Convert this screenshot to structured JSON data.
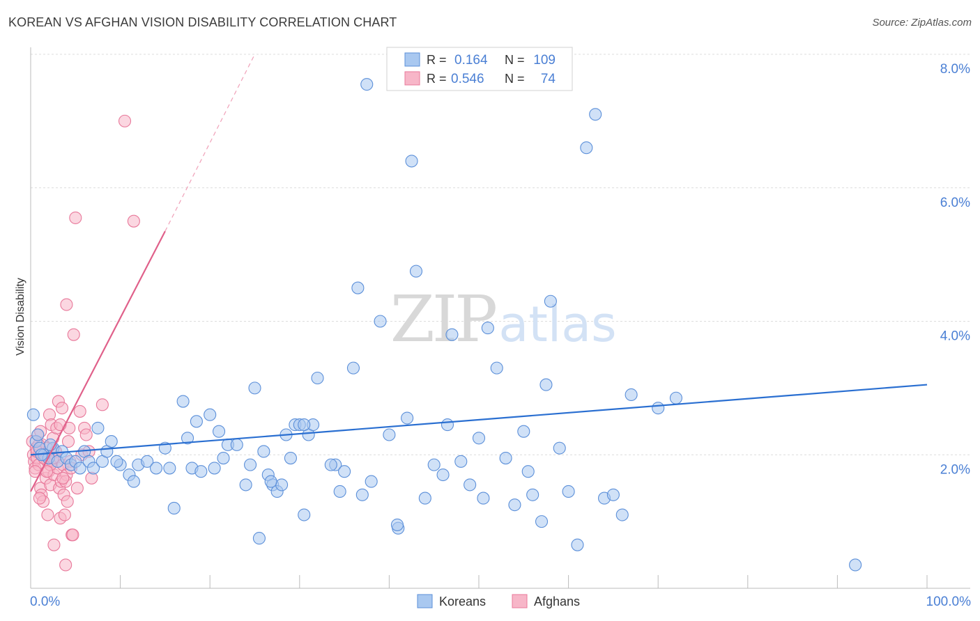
{
  "chart_data": {
    "type": "scatter",
    "title": "KOREAN VS AFGHAN VISION DISABILITY CORRELATION CHART",
    "source": "Source: ZipAtlas.com",
    "ylabel": "Vision Disability",
    "xlabel": "",
    "x_tick_labels": [
      "0.0%",
      "100.0%"
    ],
    "y_ticks": [
      {
        "value": 2.0,
        "label": "2.0%"
      },
      {
        "value": 4.0,
        "label": "4.0%"
      },
      {
        "value": 6.0,
        "label": "6.0%"
      },
      {
        "value": 8.0,
        "label": "8.0%"
      }
    ],
    "xlim": [
      0,
      100
    ],
    "ylim": [
      0,
      8.0
    ],
    "watermark": {
      "part1": "ZIP",
      "part2": "atlas"
    },
    "colors": {
      "korean_fill": "#a9c8f0",
      "korean_stroke": "#5b8fd9",
      "korean_line": "#2a6fd1",
      "afghan_fill": "#f7b6c8",
      "afghan_stroke": "#e8789a",
      "afghan_line": "#e0608a",
      "label_blue": "#4a7fd4"
    },
    "legend_stats": [
      {
        "series": "Koreans",
        "r_label": "R =",
        "r_value": "0.164",
        "n_label": "N =",
        "n_value": "109"
      },
      {
        "series": "Afghans",
        "r_label": "R =",
        "r_value": "0.546",
        "n_label": "N =",
        "n_value": "74"
      }
    ],
    "legend": [
      "Koreans",
      "Afghans"
    ],
    "series": [
      {
        "name": "Koreans",
        "trend": {
          "x0": 0,
          "y0": 2.0,
          "x1": 100,
          "y1": 3.05
        },
        "points": [
          [
            0.3,
            2.6
          ],
          [
            0.6,
            2.2
          ],
          [
            1.0,
            2.1
          ],
          [
            1.5,
            2.0
          ],
          [
            2.0,
            1.95
          ],
          [
            2.5,
            2.1
          ],
          [
            3.0,
            1.9
          ],
          [
            3.5,
            2.05
          ],
          [
            4.0,
            1.95
          ],
          [
            4.5,
            1.85
          ],
          [
            5.0,
            1.9
          ],
          [
            5.5,
            1.8
          ],
          [
            6.0,
            2.05
          ],
          [
            6.5,
            1.9
          ],
          [
            7.0,
            1.8
          ],
          [
            7.5,
            2.4
          ],
          [
            8.0,
            1.9
          ],
          [
            8.5,
            2.05
          ],
          [
            9.0,
            2.2
          ],
          [
            10.0,
            1.85
          ],
          [
            11.0,
            1.7
          ],
          [
            11.5,
            1.6
          ],
          [
            12.0,
            1.85
          ],
          [
            13.0,
            1.9
          ],
          [
            14.0,
            1.8
          ],
          [
            15.0,
            2.1
          ],
          [
            16.0,
            1.2
          ],
          [
            17.0,
            2.8
          ],
          [
            17.5,
            2.25
          ],
          [
            18.0,
            1.8
          ],
          [
            18.5,
            2.5
          ],
          [
            19.0,
            1.75
          ],
          [
            20.0,
            2.6
          ],
          [
            20.5,
            1.8
          ],
          [
            21.0,
            2.35
          ],
          [
            21.5,
            1.95
          ],
          [
            22.0,
            2.15
          ],
          [
            23.0,
            2.15
          ],
          [
            24.0,
            1.55
          ],
          [
            24.5,
            1.85
          ],
          [
            25.0,
            3.0
          ],
          [
            25.5,
            0.75
          ],
          [
            26.0,
            2.05
          ],
          [
            26.5,
            1.7
          ],
          [
            27.0,
            1.55
          ],
          [
            27.5,
            1.45
          ],
          [
            28.0,
            1.55
          ],
          [
            28.5,
            2.3
          ],
          [
            29.0,
            1.95
          ],
          [
            29.5,
            2.45
          ],
          [
            30.0,
            2.45
          ],
          [
            30.5,
            1.1
          ],
          [
            31.0,
            2.3
          ],
          [
            31.5,
            2.45
          ],
          [
            32.0,
            3.15
          ],
          [
            34.0,
            1.85
          ],
          [
            34.5,
            1.45
          ],
          [
            35.0,
            1.75
          ],
          [
            36.0,
            3.3
          ],
          [
            36.5,
            4.5
          ],
          [
            37.0,
            1.4
          ],
          [
            37.5,
            7.55
          ],
          [
            38.0,
            1.6
          ],
          [
            39.0,
            4.0
          ],
          [
            40.0,
            2.3
          ],
          [
            41.0,
            0.9
          ],
          [
            42.0,
            2.55
          ],
          [
            42.5,
            6.4
          ],
          [
            43.0,
            4.75
          ],
          [
            44.0,
            1.35
          ],
          [
            45.0,
            1.85
          ],
          [
            46.0,
            1.7
          ],
          [
            46.5,
            2.45
          ],
          [
            47.0,
            3.8
          ],
          [
            48.0,
            1.9
          ],
          [
            49.0,
            1.55
          ],
          [
            50.0,
            2.25
          ],
          [
            50.5,
            1.35
          ],
          [
            51.0,
            3.9
          ],
          [
            52.0,
            3.3
          ],
          [
            53.0,
            1.95
          ],
          [
            54.0,
            1.25
          ],
          [
            55.0,
            2.35
          ],
          [
            55.5,
            1.75
          ],
          [
            56.0,
            1.4
          ],
          [
            57.0,
            1.0
          ],
          [
            57.5,
            3.05
          ],
          [
            58.0,
            4.3
          ],
          [
            59.0,
            2.1
          ],
          [
            60.0,
            1.45
          ],
          [
            61.0,
            0.65
          ],
          [
            62.0,
            6.6
          ],
          [
            63.0,
            7.1
          ],
          [
            64.0,
            1.35
          ],
          [
            65.0,
            1.4
          ],
          [
            66.0,
            1.1
          ],
          [
            67.0,
            2.9
          ],
          [
            70.0,
            2.7
          ],
          [
            72.0,
            2.85
          ],
          [
            92.0,
            0.35
          ],
          [
            0.8,
            2.3
          ],
          [
            1.2,
            2.0
          ],
          [
            2.2,
            2.15
          ],
          [
            40.9,
            0.95
          ],
          [
            15.5,
            1.8
          ],
          [
            33.5,
            1.85
          ],
          [
            26.8,
            1.6
          ],
          [
            30.5,
            2.45
          ],
          [
            9.6,
            1.9
          ]
        ]
      },
      {
        "name": "Afghans",
        "trend": {
          "x0": 0,
          "y0": 1.45,
          "x1": 15,
          "y1": 5.35,
          "dash_x1": 25,
          "dash_y1": 8.0
        },
        "points": [
          [
            0.2,
            2.2
          ],
          [
            0.3,
            2.0
          ],
          [
            0.4,
            1.9
          ],
          [
            0.5,
            1.8
          ],
          [
            0.6,
            2.1
          ],
          [
            0.7,
            1.95
          ],
          [
            0.8,
            2.3
          ],
          [
            0.9,
            1.85
          ],
          [
            1.0,
            2.05
          ],
          [
            1.1,
            1.5
          ],
          [
            1.2,
            1.4
          ],
          [
            1.3,
            2.15
          ],
          [
            1.4,
            1.3
          ],
          [
            1.5,
            1.95
          ],
          [
            1.6,
            2.0
          ],
          [
            1.7,
            1.65
          ],
          [
            1.8,
            2.1
          ],
          [
            1.9,
            1.9
          ],
          [
            2.0,
            1.75
          ],
          [
            2.1,
            2.6
          ],
          [
            2.2,
            1.55
          ],
          [
            2.3,
            2.45
          ],
          [
            2.4,
            1.9
          ],
          [
            2.5,
            2.25
          ],
          [
            2.6,
            1.7
          ],
          [
            2.7,
            1.95
          ],
          [
            2.8,
            2.05
          ],
          [
            2.9,
            2.4
          ],
          [
            3.0,
            1.8
          ],
          [
            3.1,
            2.8
          ],
          [
            3.2,
            1.5
          ],
          [
            3.3,
            1.05
          ],
          [
            3.4,
            1.6
          ],
          [
            3.5,
            2.7
          ],
          [
            3.6,
            1.85
          ],
          [
            3.7,
            1.4
          ],
          [
            3.8,
            1.1
          ],
          [
            3.9,
            0.35
          ],
          [
            4.0,
            1.7
          ],
          [
            4.1,
            1.3
          ],
          [
            4.2,
            2.2
          ],
          [
            4.3,
            2.4
          ],
          [
            4.4,
            1.9
          ],
          [
            4.5,
            1.8
          ],
          [
            4.6,
            0.8
          ],
          [
            4.8,
            3.8
          ],
          [
            5.0,
            5.55
          ],
          [
            5.2,
            1.5
          ],
          [
            5.5,
            2.65
          ],
          [
            5.7,
            2.0
          ],
          [
            6.0,
            2.4
          ],
          [
            6.2,
            2.3
          ],
          [
            6.5,
            2.05
          ],
          [
            6.8,
            1.65
          ],
          [
            8.0,
            2.75
          ],
          [
            10.5,
            7.0
          ],
          [
            11.5,
            5.5
          ],
          [
            4.0,
            4.25
          ],
          [
            2.6,
            0.65
          ],
          [
            1.9,
            1.1
          ],
          [
            1.0,
            1.35
          ],
          [
            0.5,
            1.75
          ],
          [
            3.3,
            2.45
          ],
          [
            2.2,
            1.85
          ],
          [
            1.5,
            1.95
          ],
          [
            0.9,
            2.15
          ],
          [
            4.7,
            0.8
          ],
          [
            3.9,
            1.6
          ],
          [
            2.8,
            2.05
          ],
          [
            1.8,
            1.75
          ],
          [
            1.1,
            2.35
          ],
          [
            0.7,
            2.05
          ],
          [
            2.5,
            1.95
          ],
          [
            3.6,
            1.65
          ]
        ]
      }
    ]
  }
}
